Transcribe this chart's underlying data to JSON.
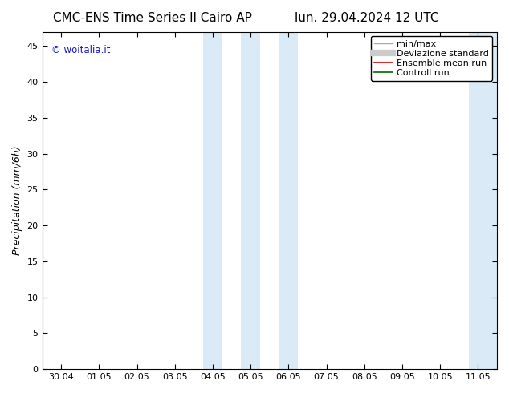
{
  "title_left": "CMC-ENS Time Series Il Cairo AP",
  "title_right": "lun. 29.04.2024 12 UTC",
  "ylabel": "Precipitation (mm/6h)",
  "ylim": [
    0,
    47
  ],
  "yticks": [
    0,
    5,
    10,
    15,
    20,
    25,
    30,
    35,
    40,
    45
  ],
  "xtick_labels": [
    "30.04",
    "01.05",
    "02.05",
    "03.05",
    "04.05",
    "05.05",
    "06.05",
    "07.05",
    "08.05",
    "09.05",
    "10.05",
    "11.05"
  ],
  "xtick_positions": [
    0,
    1,
    2,
    3,
    4,
    5,
    6,
    7,
    8,
    9,
    10,
    11
  ],
  "xlim": [
    -0.5,
    11.5
  ],
  "shaded_bands": [
    {
      "x_start": 3.75,
      "x_end": 4.25,
      "color": "#daeaf7"
    },
    {
      "x_start": 4.75,
      "x_end": 5.25,
      "color": "#daeaf7"
    },
    {
      "x_start": 5.75,
      "x_end": 6.25,
      "color": "#daeaf7"
    },
    {
      "x_start": 10.75,
      "x_end": 11.5,
      "color": "#daeaf7"
    }
  ],
  "legend_items": [
    {
      "label": "min/max",
      "color": "#aaaaaa",
      "lw": 1.0,
      "ls": "-"
    },
    {
      "label": "Deviazione standard",
      "color": "#cccccc",
      "lw": 6,
      "ls": "-"
    },
    {
      "label": "Ensemble mean run",
      "color": "#cc0000",
      "lw": 1.2,
      "ls": "-"
    },
    {
      "label": "Controll run",
      "color": "#006600",
      "lw": 1.2,
      "ls": "-"
    }
  ],
  "watermark": "© woitalia.it",
  "watermark_color": "#1515cc",
  "background_color": "#ffffff",
  "plot_bg_color": "#ffffff",
  "title_fontsize": 11,
  "ylabel_fontsize": 9,
  "tick_fontsize": 8,
  "legend_fontsize": 8
}
